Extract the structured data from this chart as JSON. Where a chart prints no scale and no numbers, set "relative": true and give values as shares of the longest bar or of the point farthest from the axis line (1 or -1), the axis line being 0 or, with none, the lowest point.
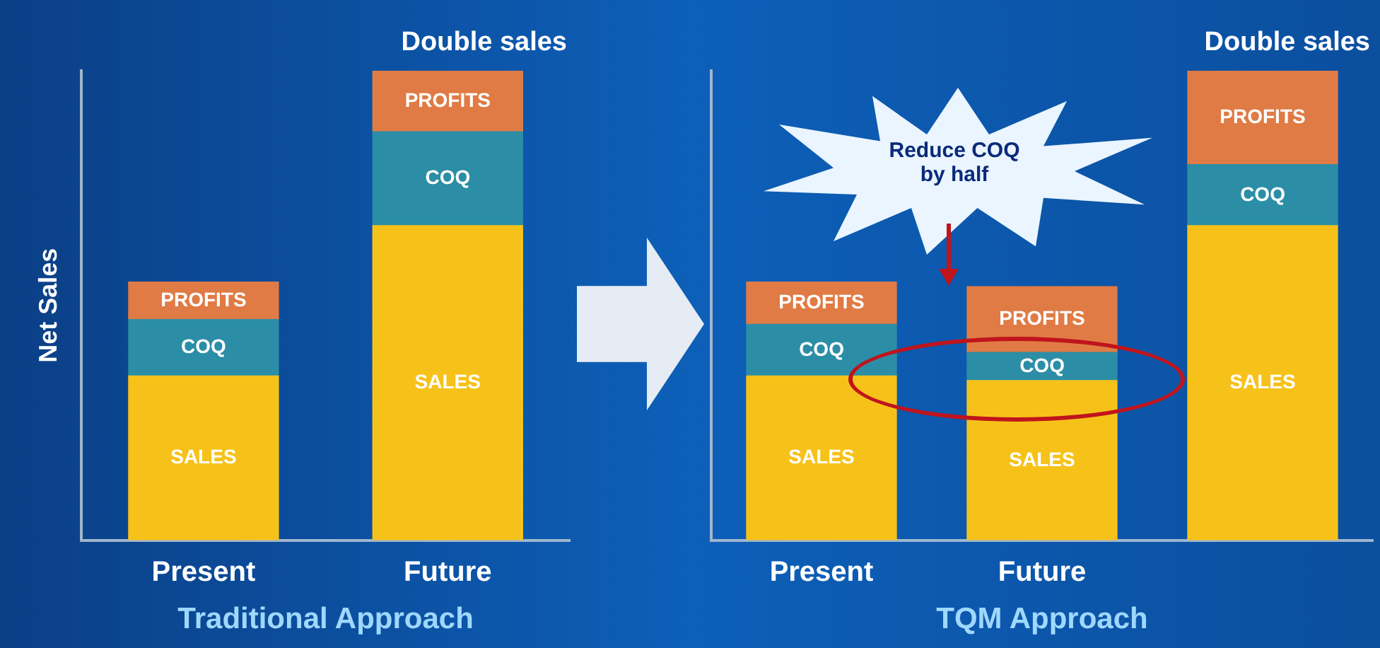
{
  "chart_data": [
    {
      "type": "bar",
      "stacked": true,
      "relative": true,
      "categories": [
        "Present",
        "Future"
      ],
      "ylabel": "Net Sales",
      "xlabel": "Traditional Approach",
      "annotations": [
        "Double sales"
      ],
      "series": [
        {
          "name": "SALES",
          "color": "#f6c21a",
          "values": [
            0.35,
            0.67
          ]
        },
        {
          "name": "COQ",
          "color": "#2b8ea6",
          "values": [
            0.12,
            0.2
          ]
        },
        {
          "name": "PROFITS",
          "color": "#e07b45",
          "values": [
            0.08,
            0.13
          ]
        }
      ]
    },
    {
      "type": "bar",
      "stacked": true,
      "relative": true,
      "categories": [
        "Present",
        "Future",
        null
      ],
      "xlabel": "TQM Approach",
      "annotations": [
        "Double sales",
        "Reduce COQ by half"
      ],
      "series": [
        {
          "name": "SALES",
          "color": "#f6c21a",
          "values": [
            0.35,
            0.34,
            0.67
          ]
        },
        {
          "name": "COQ",
          "color": "#2b8ea6",
          "values": [
            0.11,
            0.06,
            0.13
          ]
        },
        {
          "name": "PROFITS",
          "color": "#e07b45",
          "values": [
            0.09,
            0.14,
            0.2
          ]
        }
      ]
    }
  ]
}
